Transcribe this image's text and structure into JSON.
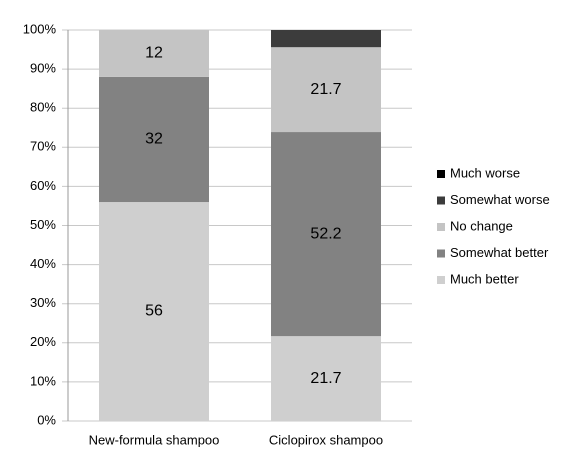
{
  "chart_data": {
    "type": "stacked-bar",
    "categories": [
      "New-formula shampoo",
      "Ciclopirox shampoo"
    ],
    "series": [
      {
        "name": "Much better",
        "color": "#cfcfcf",
        "values": [
          56,
          21.7
        ],
        "labels": true
      },
      {
        "name": "Somewhat better",
        "color": "#828282",
        "values": [
          32,
          52.2
        ],
        "labels": true
      },
      {
        "name": "No change",
        "color": "#c4c4c4",
        "values": [
          12,
          21.7
        ],
        "labels": true
      },
      {
        "name": "Somewhat worse",
        "color": "#3c3c3c",
        "values": [
          0,
          4.4
        ],
        "labels": false
      },
      {
        "name": "Much worse",
        "color": "#000000",
        "values": [
          0,
          0
        ],
        "labels": false
      }
    ],
    "ylim": [
      0,
      100
    ],
    "yticks": [
      {
        "value": 0,
        "label": "0%"
      },
      {
        "value": 10,
        "label": "10%"
      },
      {
        "value": 20,
        "label": "20%"
      },
      {
        "value": 30,
        "label": "30%"
      },
      {
        "value": 40,
        "label": "40%"
      },
      {
        "value": 50,
        "label": "50%"
      },
      {
        "value": 60,
        "label": "60%"
      },
      {
        "value": 70,
        "label": "70%"
      },
      {
        "value": 80,
        "label": "80%"
      },
      {
        "value": 90,
        "label": "90%"
      },
      {
        "value": 100,
        "label": "100%"
      }
    ],
    "grid": true,
    "legend": "right"
  }
}
